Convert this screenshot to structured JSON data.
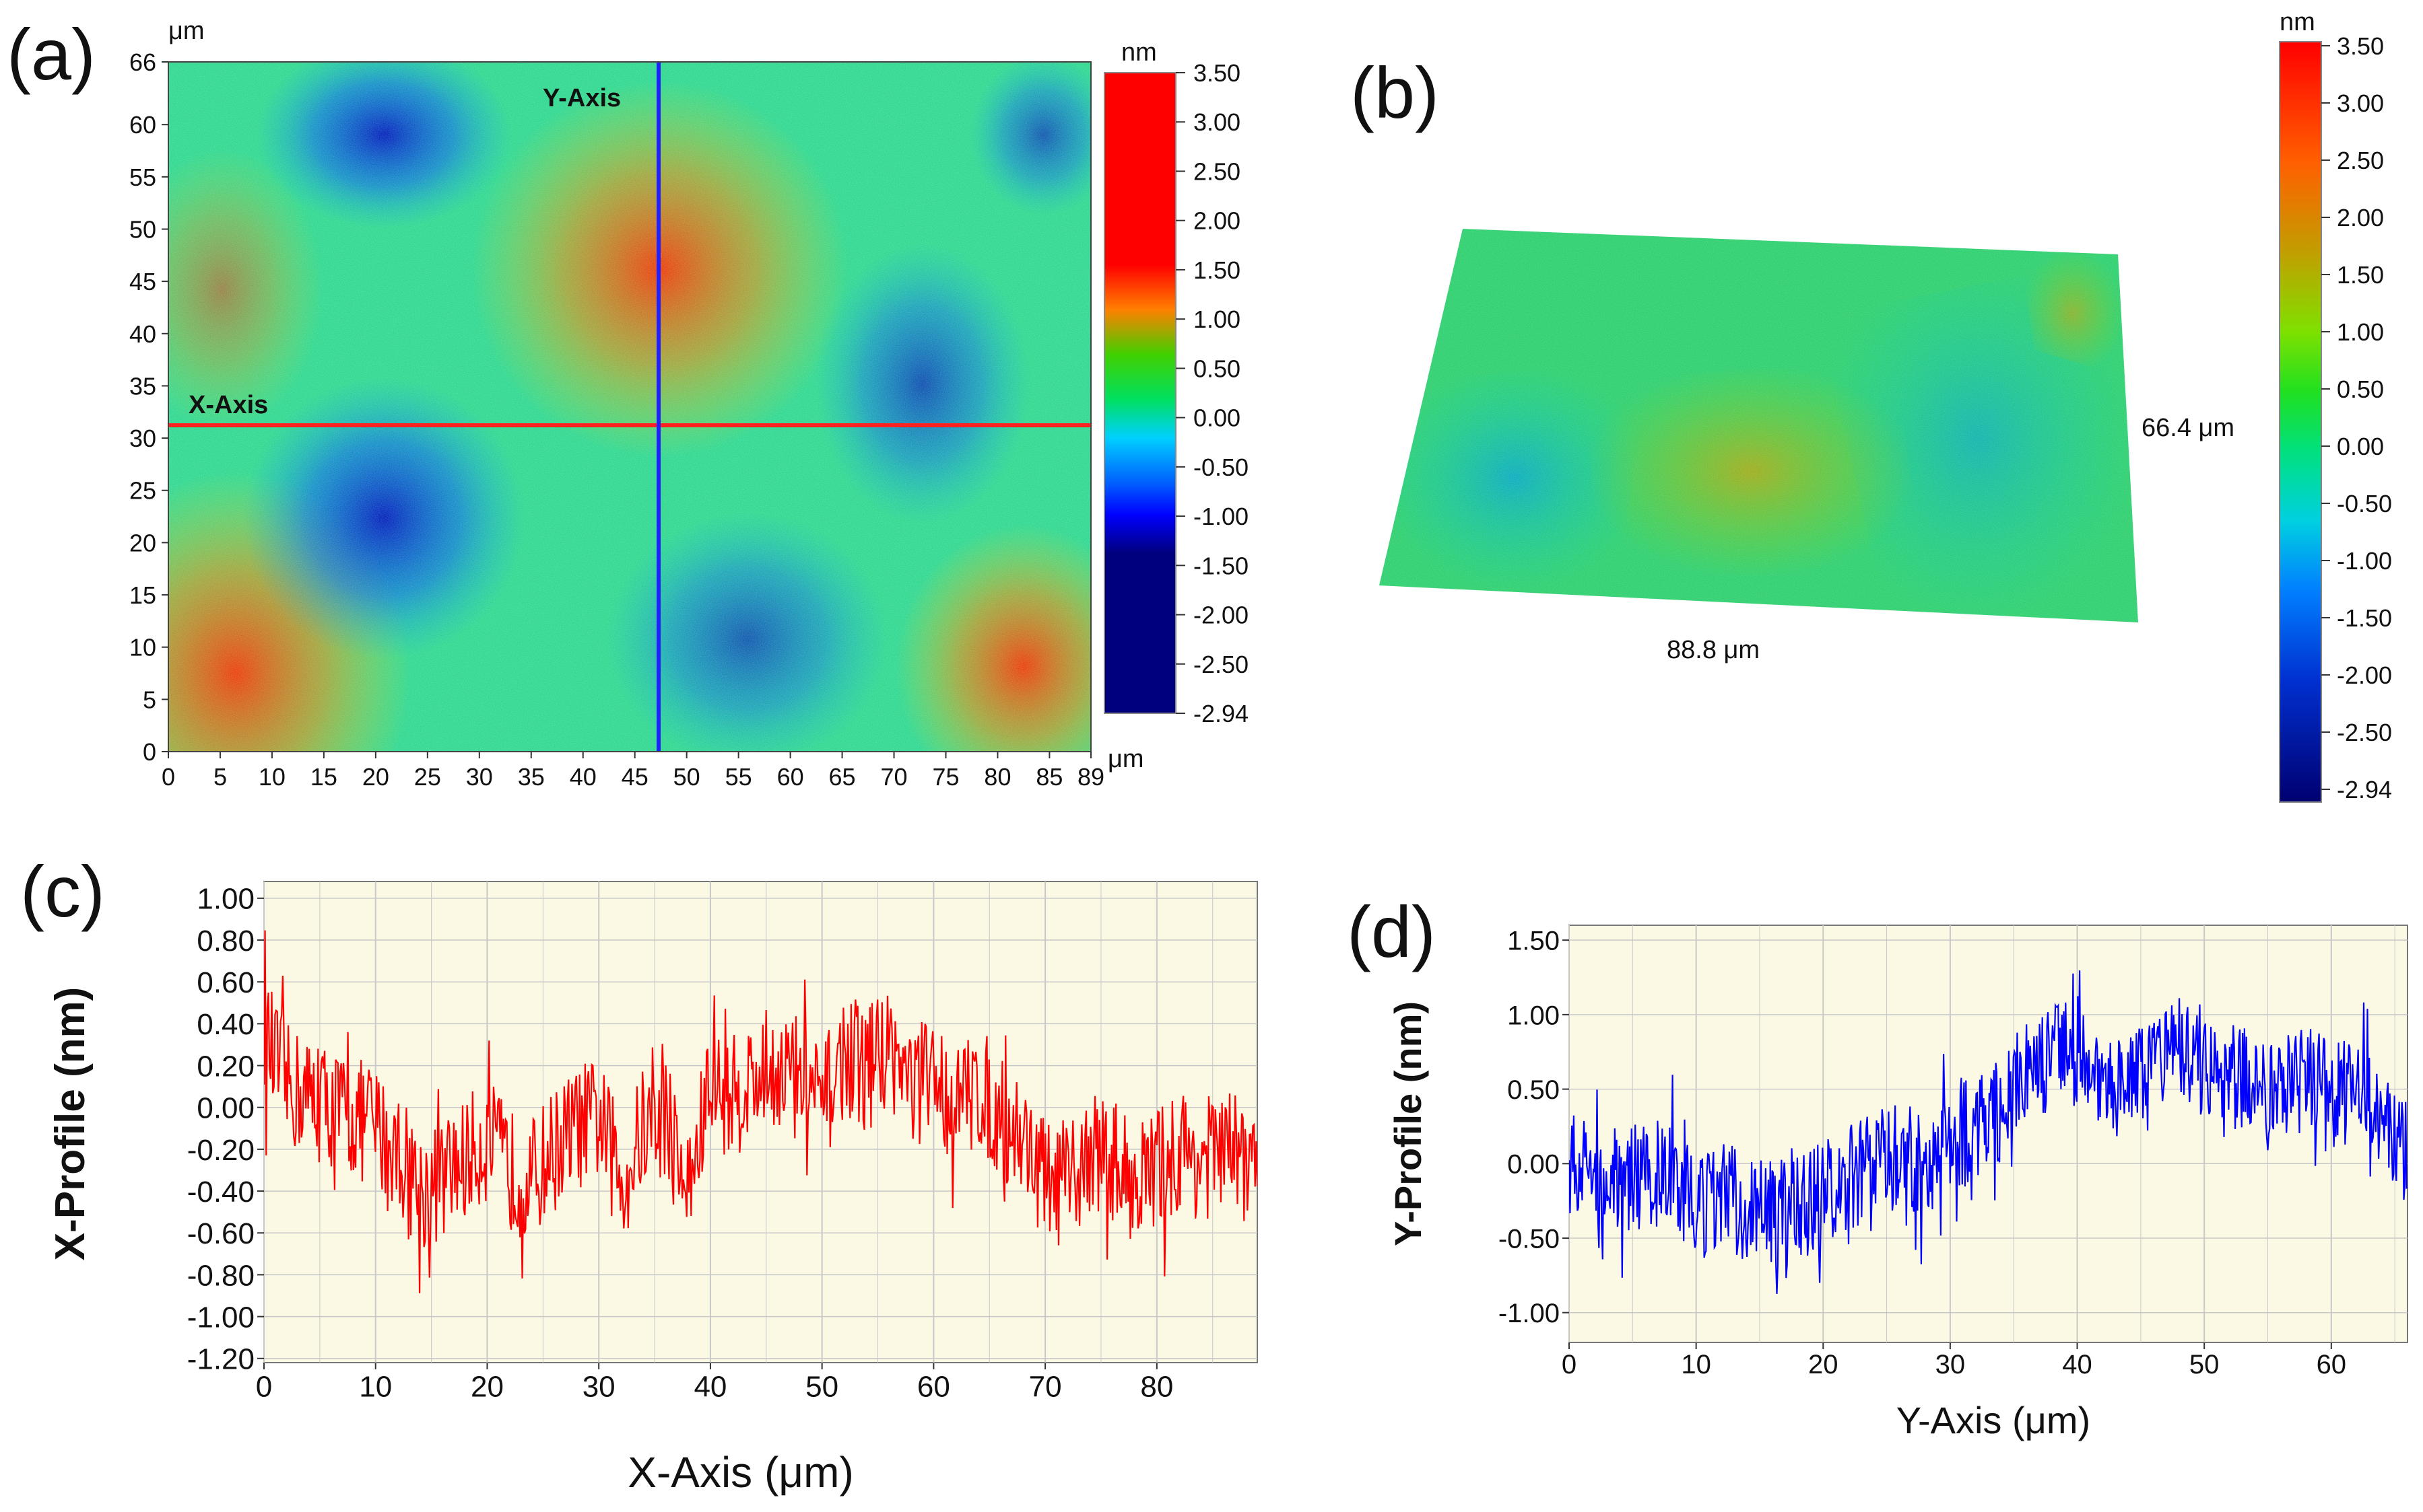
{
  "panels": {
    "a": {
      "label": "(a)",
      "x_unit": "μm",
      "y_unit": "μm",
      "axis_labels": {
        "x": "X-Axis",
        "y": "Y-Axis"
      },
      "x_ticks": [
        "0",
        "5",
        "10",
        "15",
        "20",
        "25",
        "30",
        "35",
        "40",
        "45",
        "50",
        "55",
        "60",
        "65",
        "70",
        "75",
        "80",
        "85",
        "89"
      ],
      "y_ticks": [
        "0",
        "5",
        "10",
        "15",
        "20",
        "25",
        "30",
        "35",
        "40",
        "45",
        "50",
        "55",
        "60",
        "66"
      ],
      "colorbar": {
        "unit": "nm",
        "ticks": [
          "3.50",
          "3.00",
          "2.50",
          "2.00",
          "1.50",
          "1.00",
          "0.50",
          "0.00",
          "-0.50",
          "-1.00",
          "-1.50",
          "-2.00",
          "-2.50",
          "-2.94"
        ]
      }
    },
    "b": {
      "label": "(b)",
      "dim_x": "88.8 μm",
      "dim_y": "66.4 μm",
      "colorbar": {
        "unit": "nm",
        "ticks": [
          "3.50",
          "3.00",
          "2.50",
          "2.00",
          "1.50",
          "1.00",
          "0.50",
          "0.00",
          "-0.50",
          "-1.00",
          "-1.50",
          "-2.00",
          "-2.50",
          "-2.94"
        ]
      }
    },
    "c": {
      "label": "(c)"
    },
    "d": {
      "label": "(d)"
    }
  },
  "colors": {
    "map_scale": [
      "#00007f",
      "#0000ff",
      "#0080ff",
      "#00ffff",
      "#00ff40",
      "#80ff00",
      "#ffff00",
      "#ff8000",
      "#ff0000"
    ],
    "x_profile_line": "#ff0000",
    "y_profile_line": "#0000ff",
    "plot_bg": "#fbf9e3",
    "cross_x_line": "#ff2020",
    "cross_y_line": "#2020ff"
  },
  "chart_data": [
    {
      "id": "a",
      "type": "heatmap",
      "xlabel": "",
      "ylabel": "",
      "xlim": [
        0,
        89
      ],
      "ylim": [
        0,
        66
      ],
      "zlim": [
        -2.94,
        3.5
      ],
      "z_unit": "nm",
      "crosshair": {
        "x": 47,
        "y": 31.5
      }
    },
    {
      "id": "b",
      "type": "heatmap",
      "xlim": [
        0,
        88.8
      ],
      "ylim": [
        0,
        66.4
      ],
      "zlim": [
        -2.94,
        3.5
      ]
    },
    {
      "id": "c",
      "type": "line",
      "xlabel": "X-Axis (μm)",
      "ylabel": "X-Profile (nm)",
      "xlim": [
        0,
        89
      ],
      "ylim": [
        -1.22,
        1.08
      ],
      "x_ticks": [
        "0",
        "10",
        "20",
        "30",
        "40",
        "50",
        "60",
        "70",
        "80"
      ],
      "y_ticks": [
        "1.00",
        "0.80",
        "0.60",
        "0.40",
        "0.20",
        "0.00",
        "-0.20",
        "-0.40",
        "-0.60",
        "-0.80",
        "-1.00",
        "-1.20"
      ],
      "grid": true,
      "series": [
        {
          "x": [
            0,
            2,
            4,
            6,
            8,
            10,
            12,
            14,
            16,
            18,
            20,
            22,
            24,
            26,
            28,
            30,
            32,
            34,
            36,
            38,
            40,
            42,
            44,
            46,
            48,
            50,
            52,
            54,
            56,
            58,
            60,
            62,
            64,
            66,
            68,
            70,
            72,
            74,
            76,
            78,
            80,
            82,
            84,
            86,
            88
          ],
          "values": [
            0.35,
            0.1,
            0.05,
            0.0,
            -0.05,
            -0.1,
            -0.2,
            -0.4,
            -0.35,
            -0.25,
            -0.15,
            -0.3,
            -0.35,
            -0.2,
            -0.1,
            -0.05,
            -0.35,
            -0.1,
            -0.05,
            -0.4,
            0.1,
            0.05,
            0.15,
            0.2,
            0.15,
            0.0,
            0.25,
            0.2,
            0.3,
            0.1,
            0.15,
            0.0,
            0.1,
            -0.05,
            -0.15,
            -0.35,
            -0.4,
            -0.2,
            -0.25,
            -0.35,
            -0.3,
            -0.2,
            -0.25,
            -0.2,
            -0.25
          ]
        }
      ]
    },
    {
      "id": "d",
      "type": "line",
      "xlabel": "Y-Axis (μm)",
      "ylabel": "Y-Profile (nm)",
      "xlim": [
        0,
        66
      ],
      "ylim": [
        -1.2,
        1.6
      ],
      "x_ticks": [
        "0",
        "10",
        "20",
        "30",
        "40",
        "50",
        "60"
      ],
      "y_ticks": [
        "1.50",
        "1.00",
        "0.50",
        "0.00",
        "-0.50",
        "-1.00"
      ],
      "grid": true,
      "series": [
        {
          "x": [
            0,
            2,
            4,
            6,
            8,
            10,
            12,
            14,
            16,
            18,
            20,
            22,
            24,
            26,
            28,
            30,
            32,
            34,
            36,
            38,
            40,
            42,
            44,
            46,
            48,
            50,
            52,
            54,
            56,
            58,
            60,
            62,
            64,
            66
          ],
          "values": [
            0.0,
            -0.05,
            -0.1,
            -0.1,
            -0.05,
            -0.3,
            -0.2,
            -0.3,
            -0.35,
            -0.3,
            -0.2,
            -0.1,
            0.0,
            0.05,
            0.0,
            0.15,
            0.25,
            0.35,
            0.6,
            0.7,
            0.75,
            0.6,
            0.5,
            0.6,
            0.75,
            0.7,
            0.6,
            0.55,
            0.5,
            0.55,
            0.5,
            0.45,
            0.3,
            0.05
          ]
        }
      ]
    }
  ]
}
